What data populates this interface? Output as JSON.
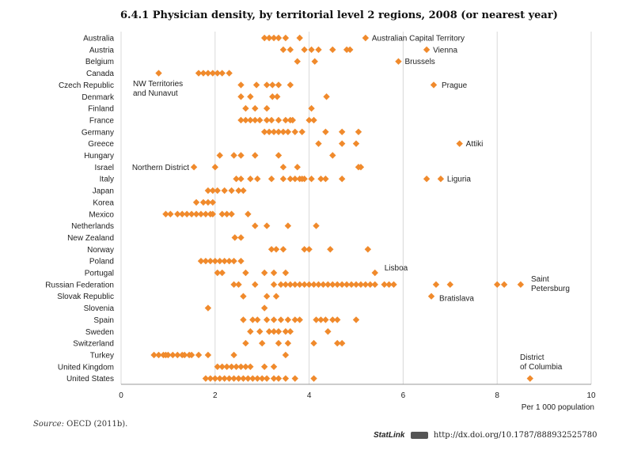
{
  "title": "6.4.1  Physician density, by territorial level 2 regions, 2008 (or nearest year)",
  "source_label": "Source:",
  "source_text": "OECD (2011b).",
  "statlink_label": "StatLink",
  "statlink_url": "http://dx.doi.org/10.1787/888932525780",
  "colors": {
    "marker": "#f08a2c",
    "grid": "#d9d9d9",
    "axis": "#999999"
  },
  "chart_data": {
    "type": "scatter",
    "marker": "diamond",
    "xlim": [
      0,
      10
    ],
    "xticks": [
      0,
      2,
      4,
      6,
      8,
      10
    ],
    "xlabel": "Per 1 000 population",
    "grid": "vertical",
    "categories": [
      "Australia",
      "Austria",
      "Belgium",
      "Canada",
      "Czech Republic",
      "Denmark",
      "Finland",
      "France",
      "Germany",
      "Greece",
      "Hungary",
      "Israel",
      "Italy",
      "Japan",
      "Korea",
      "Mexico",
      "Netherlands",
      "New Zealand",
      "Norway",
      "Poland",
      "Portugal",
      "Russian Federation",
      "Slovak Republic",
      "Slovenia",
      "Spain",
      "Sweden",
      "Switzerland",
      "Turkey",
      "United Kingdom",
      "United States"
    ],
    "values": [
      [
        3.05,
        3.15,
        3.25,
        3.35,
        3.5,
        3.8,
        5.2
      ],
      [
        3.45,
        3.6,
        3.9,
        4.05,
        4.2,
        4.5,
        4.8,
        4.87,
        6.5
      ],
      [
        3.75,
        4.12,
        5.9
      ],
      [
        0.8,
        1.65,
        1.75,
        1.85,
        1.95,
        2.05,
        2.15,
        2.3
      ],
      [
        2.55,
        2.88,
        3.1,
        3.22,
        3.35,
        3.6,
        6.65
      ],
      [
        2.55,
        2.75,
        3.22,
        3.32,
        4.37
      ],
      [
        2.65,
        2.85,
        3.1,
        4.05
      ],
      [
        2.55,
        2.65,
        2.75,
        2.85,
        2.95,
        3.1,
        3.2,
        3.35,
        3.5,
        3.6,
        3.65,
        4.0,
        4.1
      ],
      [
        3.05,
        3.15,
        3.25,
        3.35,
        3.45,
        3.55,
        3.7,
        3.85,
        4.35,
        4.7,
        5.05
      ],
      [
        4.2,
        4.7,
        5.0,
        7.2
      ],
      [
        2.1,
        2.4,
        2.55,
        2.85,
        3.35,
        4.5
      ],
      [
        1.55,
        2.0,
        3.45,
        3.75,
        5.05,
        5.1
      ],
      [
        2.45,
        2.55,
        2.75,
        2.9,
        3.2,
        3.45,
        3.6,
        3.7,
        3.8,
        3.85,
        3.9,
        4.05,
        4.25,
        4.35,
        4.7,
        6.5,
        6.8
      ],
      [
        1.85,
        1.95,
        2.05,
        2.2,
        2.35,
        2.5,
        2.6
      ],
      [
        1.6,
        1.75,
        1.85,
        1.95
      ],
      [
        0.95,
        1.05,
        1.2,
        1.3,
        1.4,
        1.5,
        1.6,
        1.7,
        1.8,
        1.9,
        1.95,
        2.15,
        2.25,
        2.35,
        2.7
      ],
      [
        2.85,
        3.1,
        3.55,
        4.15
      ],
      [
        2.42,
        2.55
      ],
      [
        3.2,
        3.3,
        3.45,
        3.9,
        4.0,
        4.45,
        5.25
      ],
      [
        1.7,
        1.8,
        1.9,
        2.0,
        2.1,
        2.2,
        2.3,
        2.4,
        2.55
      ],
      [
        2.05,
        2.15,
        2.65,
        3.05,
        3.25,
        3.5,
        5.4
      ],
      [
        2.4,
        2.5,
        2.85,
        3.25,
        3.4,
        3.5,
        3.6,
        3.7,
        3.8,
        3.9,
        4.0,
        4.1,
        4.2,
        4.3,
        4.4,
        4.5,
        4.6,
        4.7,
        4.8,
        4.9,
        5.0,
        5.1,
        5.2,
        5.3,
        5.4,
        5.6,
        5.7,
        5.8,
        6.7,
        7.0,
        8.0,
        8.15,
        8.5
      ],
      [
        2.6,
        3.1,
        3.3,
        6.6
      ],
      [
        1.85,
        3.05
      ],
      [
        2.6,
        2.8,
        2.9,
        3.1,
        3.25,
        3.4,
        3.55,
        3.7,
        3.8,
        4.15,
        4.25,
        4.35,
        4.5,
        4.6,
        5.0
      ],
      [
        2.75,
        2.95,
        3.15,
        3.25,
        3.35,
        3.5,
        3.6,
        4.4
      ],
      [
        2.65,
        3.0,
        3.35,
        3.55,
        4.1,
        4.6,
        4.7
      ],
      [
        0.7,
        0.8,
        0.9,
        0.95,
        1.0,
        1.1,
        1.2,
        1.3,
        1.35,
        1.45,
        1.5,
        1.65,
        1.85,
        2.4,
        3.5
      ],
      [
        2.05,
        2.15,
        2.25,
        2.35,
        2.45,
        2.55,
        2.65,
        2.75,
        3.05,
        3.25
      ],
      [
        1.8,
        1.9,
        2.0,
        2.1,
        2.2,
        2.3,
        2.4,
        2.5,
        2.6,
        2.7,
        2.8,
        2.9,
        3.0,
        3.1,
        3.25,
        3.35,
        3.5,
        3.7,
        4.1,
        8.7
      ]
    ],
    "annotations": [
      {
        "category": "Australia",
        "text": [
          "Australian Capital Territory"
        ]
      },
      {
        "category": "Austria",
        "text": [
          "Vienna"
        ]
      },
      {
        "category": "Belgium",
        "text": [
          "Brussels"
        ]
      },
      {
        "category": "Czech Republic",
        "text": [
          "Prague"
        ]
      },
      {
        "category": "Canada",
        "text": [
          "NW Territories",
          "and Nunavut"
        ]
      },
      {
        "category": "Greece",
        "text": [
          "Attiki"
        ]
      },
      {
        "category": "Israel",
        "text": [
          "Northern District"
        ]
      },
      {
        "category": "Italy",
        "text": [
          "Liguria"
        ]
      },
      {
        "category": "Portugal",
        "text": [
          "Lisboa"
        ]
      },
      {
        "category": "Russian Federation",
        "text": [
          "Saint",
          "Petersburg"
        ]
      },
      {
        "category": "Slovak Republic",
        "text": [
          "Bratislava"
        ]
      },
      {
        "category": "United States",
        "text": [
          "District",
          "of Columbia"
        ]
      }
    ]
  }
}
